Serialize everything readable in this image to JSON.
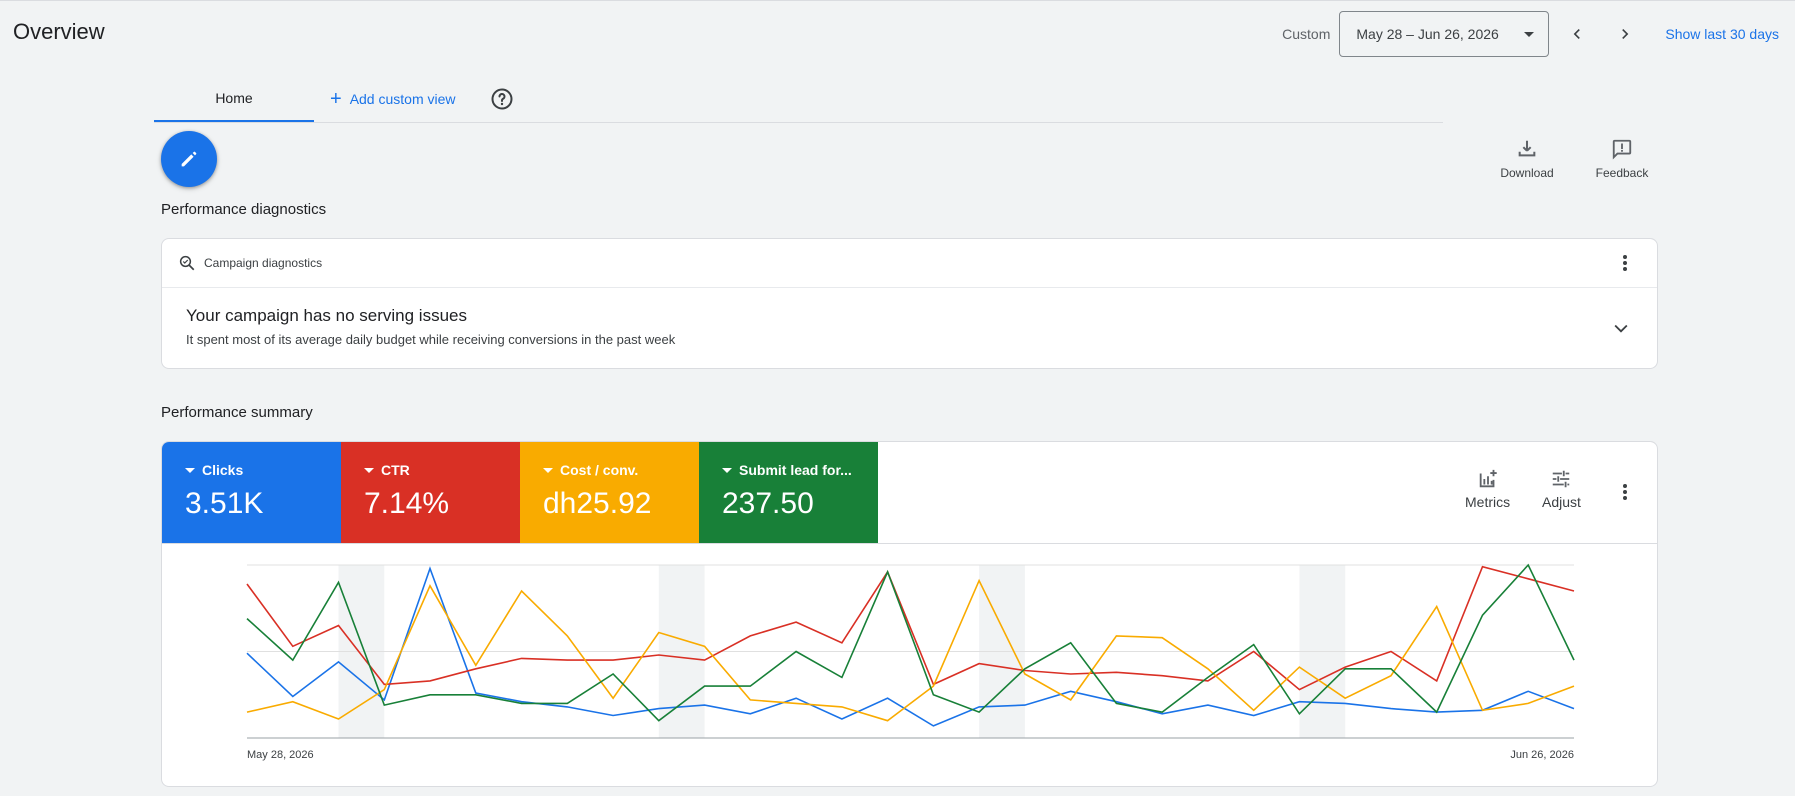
{
  "header": {
    "title": "Overview",
    "custom_label": "Custom",
    "date_range": "May 28 – Jun 26, 2026",
    "show_last_label": "Show last 30 days"
  },
  "tabs": {
    "home_label": "Home",
    "add_view_label": "Add custom view"
  },
  "toolbar": {
    "download_label": "Download",
    "feedback_label": "Feedback"
  },
  "diagnostics": {
    "section_title": "Performance diagnostics",
    "card_label": "Campaign diagnostics",
    "status_title": "Your campaign has no serving issues",
    "status_detail": "It spent most of its average daily budget while receiving conversions in the past week"
  },
  "summary": {
    "section_title": "Performance summary",
    "metrics_label": "Metrics",
    "adjust_label": "Adjust",
    "cards": [
      {
        "name": "Clicks",
        "value": "3.51K",
        "color": "#1a73e8"
      },
      {
        "name": "CTR",
        "value": "7.14%",
        "color": "#d93025"
      },
      {
        "name": "Cost / conv.",
        "value": "dh25.92",
        "color": "#f9ab00"
      },
      {
        "name": "Submit lead for...",
        "value": "237.50",
        "color": "#188038"
      }
    ]
  },
  "chart_data": {
    "type": "line",
    "x_start_label": "May 28, 2026",
    "x_end_label": "Jun 26, 2026",
    "ylim": [
      0,
      100
    ],
    "grid": true,
    "shaded_weekend_index_ranges": [
      [
        2,
        3
      ],
      [
        9,
        10
      ],
      [
        16,
        17
      ],
      [
        23,
        24
      ]
    ],
    "series": [
      {
        "name": "Clicks",
        "color": "#1a73e8",
        "values": [
          49,
          24,
          44,
          22,
          98,
          26,
          21,
          18,
          13,
          17,
          19,
          14,
          23,
          11,
          23,
          7,
          18,
          19,
          27,
          21,
          14,
          19,
          13,
          21,
          20,
          17,
          15,
          16,
          27,
          17
        ]
      },
      {
        "name": "CTR",
        "color": "#d93025",
        "values": [
          89,
          53,
          65,
          31,
          33,
          40,
          46,
          45,
          45,
          48,
          45,
          59,
          67,
          55,
          96,
          31,
          43,
          39,
          37,
          38,
          36,
          33,
          50,
          28,
          41,
          50,
          33,
          99,
          92,
          85
        ]
      },
      {
        "name": "Cost / conv.",
        "color": "#f9ab00",
        "values": [
          15,
          21,
          11,
          28,
          88,
          42,
          85,
          59,
          23,
          61,
          53,
          22,
          20,
          18,
          10,
          30,
          91,
          37,
          22,
          59,
          58,
          40,
          16,
          41,
          23,
          36,
          76,
          16,
          20,
          30
        ]
      },
      {
        "name": "Submit lead for...",
        "color": "#188038",
        "values": [
          69,
          45,
          90,
          19,
          25,
          25,
          20,
          20,
          37,
          10,
          30,
          30,
          50,
          35,
          96,
          25,
          15,
          40,
          55,
          20,
          15,
          35,
          54,
          14,
          40,
          40,
          15,
          71,
          100,
          45
        ]
      }
    ]
  }
}
